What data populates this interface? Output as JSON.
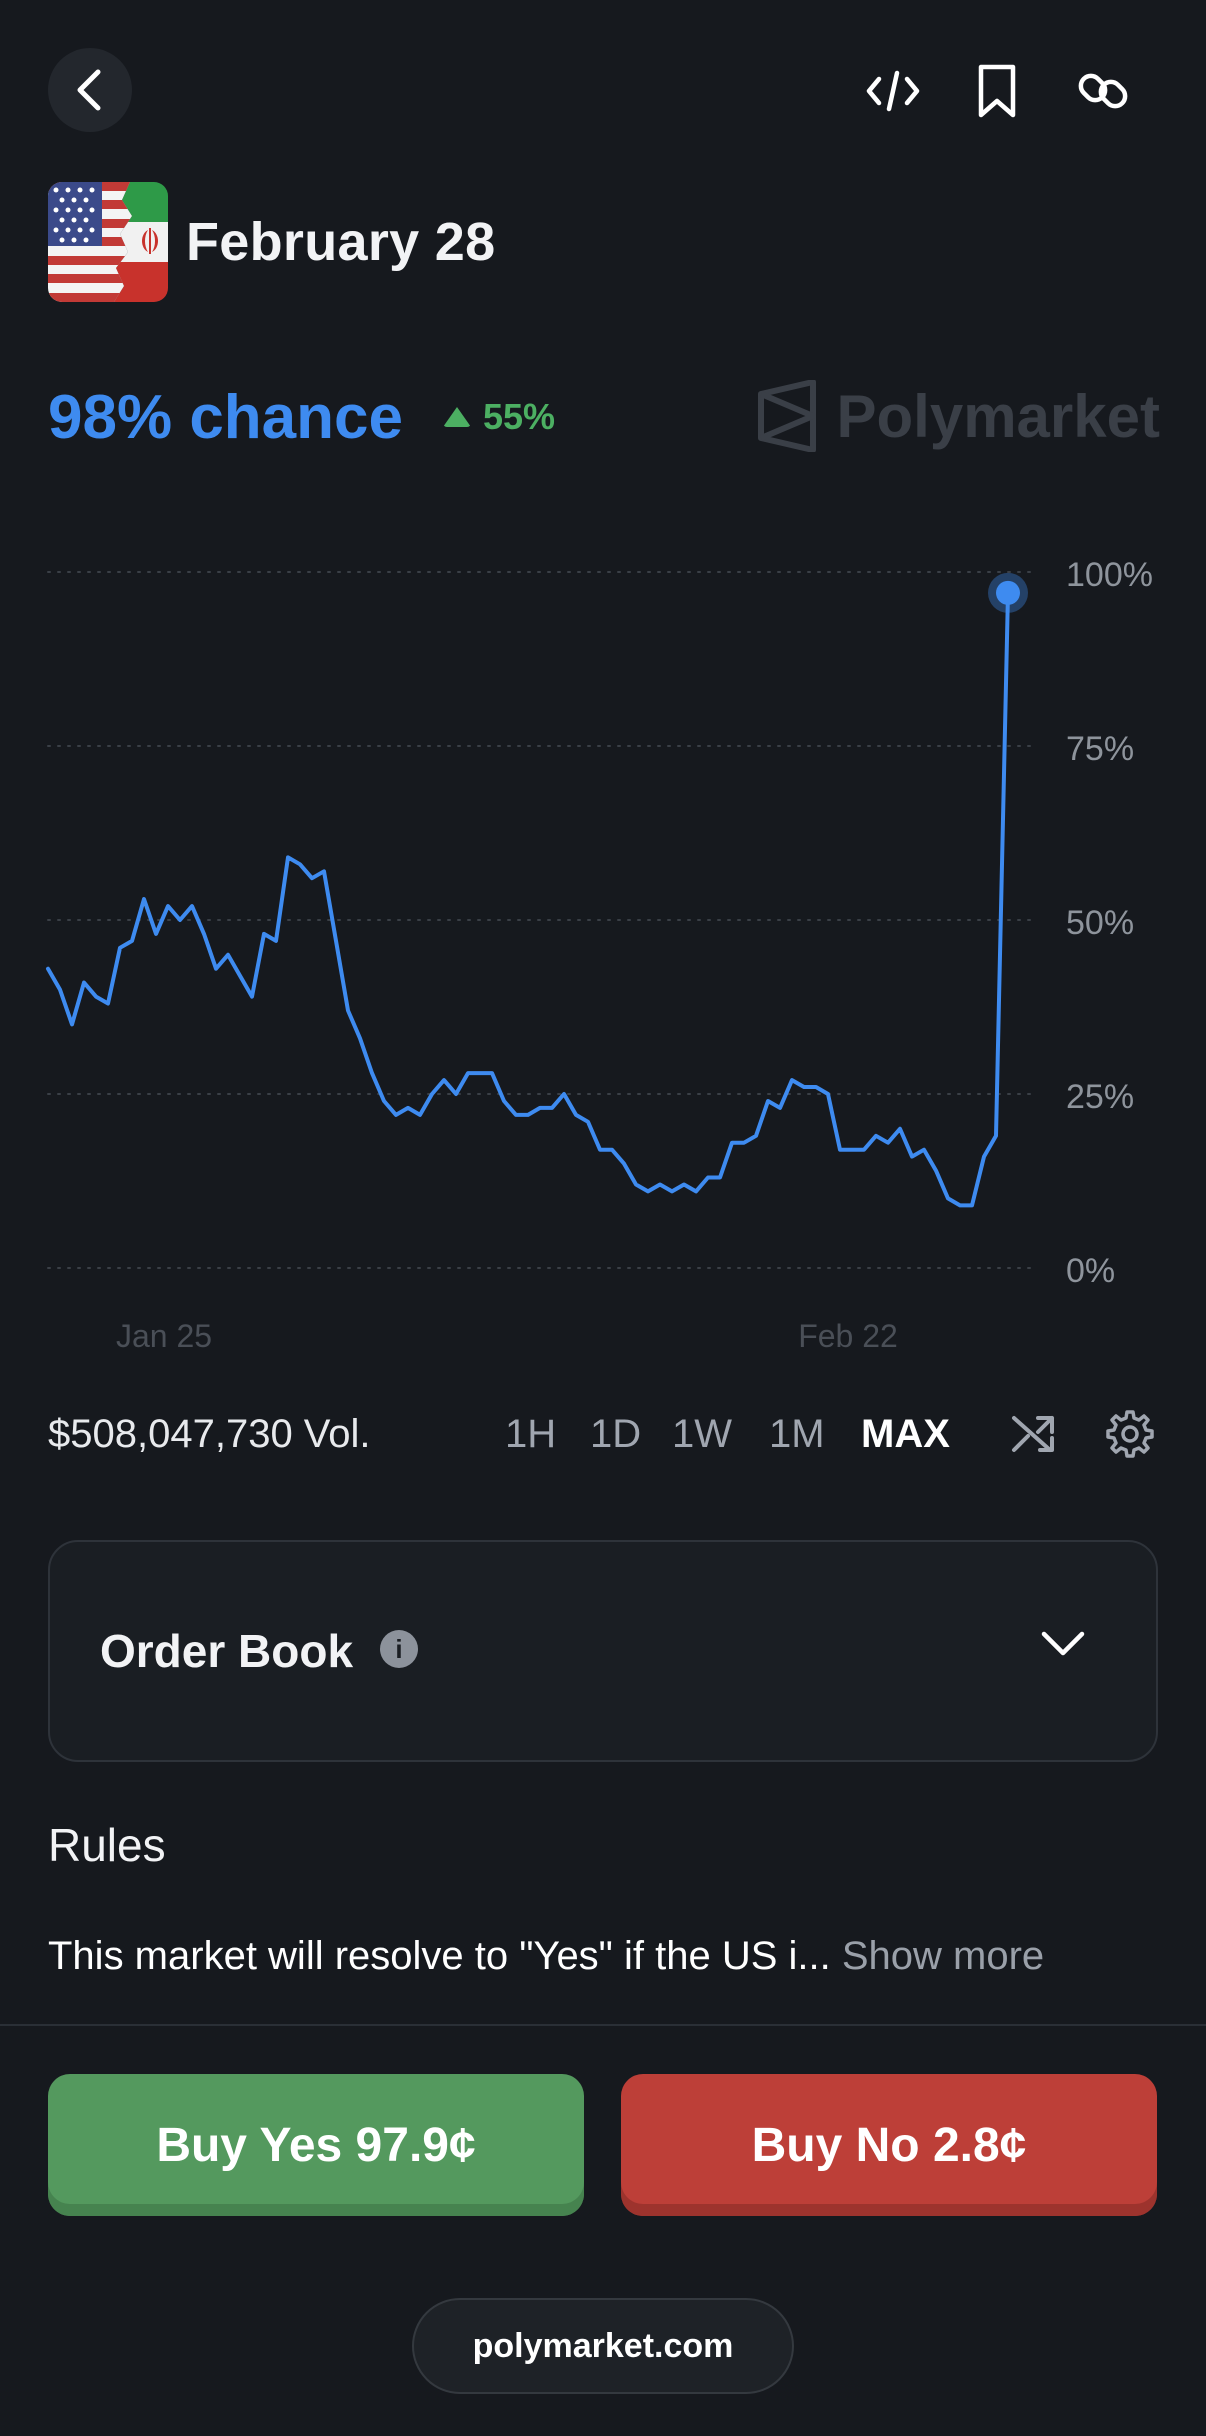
{
  "header": {
    "back_icon": "chevron-left-icon",
    "embed_icon": "code-icon",
    "bookmark_icon": "bookmark-icon",
    "link_icon": "link-icon"
  },
  "market": {
    "title": "February 28",
    "flag_icon": "us-iran-flag",
    "chance": "98% chance",
    "delta": "55%",
    "delta_color": "#4caf62",
    "accent_color": "#3e8bf0",
    "watermark": "Polymarket"
  },
  "chart_data": {
    "type": "line",
    "x_tick_labels": [
      "Jan 25",
      "Feb 22"
    ],
    "y_tick_labels": [
      "100%",
      "75%",
      "50%",
      "25%",
      "0%"
    ],
    "ylim": [
      0,
      100
    ],
    "grid": true,
    "series": [
      {
        "values": [
          43,
          40,
          35,
          41,
          39,
          38,
          46,
          47,
          53,
          48,
          52,
          50,
          52,
          48,
          43,
          45,
          42,
          39,
          48,
          47,
          59,
          58,
          56,
          57,
          47,
          37,
          33,
          28,
          24,
          22,
          23,
          22,
          25,
          27,
          25,
          28,
          28,
          28,
          24,
          22,
          22,
          23,
          23,
          25,
          22,
          21,
          17,
          17,
          15,
          12,
          11,
          12,
          11,
          12,
          11,
          13,
          13,
          18,
          18,
          19,
          24,
          23,
          27,
          26,
          26,
          25,
          17,
          17,
          17,
          19,
          18,
          20,
          16,
          17,
          14,
          10,
          9,
          9,
          16,
          19,
          97
        ]
      }
    ]
  },
  "stats": {
    "volume": "$508,047,730 Vol.",
    "ranges": [
      "1H",
      "1D",
      "1W",
      "1M",
      "MAX"
    ],
    "active_range": "MAX",
    "shuffle_icon": "shuffle-icon",
    "settings_icon": "gear-icon"
  },
  "order_book": {
    "label": "Order Book",
    "info": "i",
    "chevron_icon": "chevron-down-icon"
  },
  "rules": {
    "title": "Rules",
    "text": "This market will resolve to \"Yes\" if the US i...",
    "show_more": "Show more"
  },
  "actions": {
    "buy_yes": "Buy Yes 97.9¢",
    "buy_no": "Buy No 2.8¢",
    "yes_color": "#54995e",
    "no_color": "#bd3f38"
  },
  "footer": {
    "domain": "polymarket.com"
  }
}
